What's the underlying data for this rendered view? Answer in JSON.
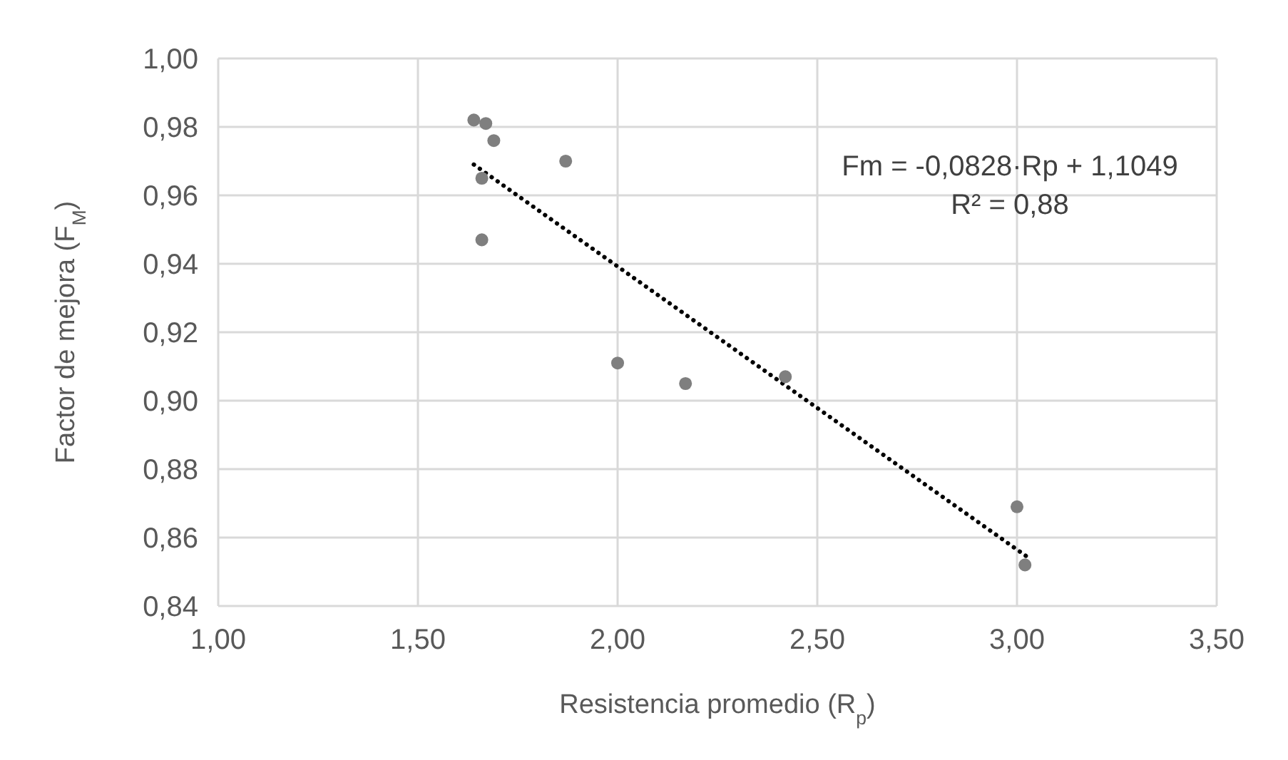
{
  "chart_data": {
    "type": "scatter",
    "xlabel": "Resistencia promedio (R$_{p}$)",
    "ylabel": "Factor de mejora (F$_{M}$)",
    "series": [
      {
        "color": "#7f7f7f",
        "x": [
          1.64,
          1.67,
          1.69,
          1.87,
          1.66,
          1.66,
          2.0,
          2.17,
          2.42,
          3.0,
          3.02
        ],
        "values": [
          0.982,
          0.981,
          0.976,
          0.97,
          0.965,
          0.947,
          0.911,
          0.905,
          0.907,
          0.869,
          0.852
        ],
        "marker": "circle"
      },
      {
        "type": "line",
        "color": "#000000",
        "x": [
          1.64,
          3.03
        ],
        "values": [
          0.969,
          0.854
        ],
        "line_style": "dotted",
        "marker": "none"
      }
    ],
    "annotations": [
      "Fm = -0,0828·Rp + 1,1049",
      "R² = 0,88"
    ],
    "xlim": [
      1.0,
      3.5
    ],
    "xticks": [
      {
        "value": 1.0,
        "label": "1,00"
      },
      {
        "value": 1.5,
        "label": "1,50"
      },
      {
        "value": 2.0,
        "label": "2,00"
      },
      {
        "value": 2.5,
        "label": "2,50"
      },
      {
        "value": 3.0,
        "label": "3,00"
      },
      {
        "value": 3.5,
        "label": "3,50"
      }
    ],
    "ylim": [
      0.84,
      1.0
    ],
    "yticks": [
      {
        "value": 0.84,
        "label": "0,84"
      },
      {
        "value": 0.86,
        "label": "0,86"
      },
      {
        "value": 0.88,
        "label": "0,88"
      },
      {
        "value": 0.9,
        "label": "0,90"
      },
      {
        "value": 0.92,
        "label": "0,92"
      },
      {
        "value": 0.94,
        "label": "0,94"
      },
      {
        "value": 0.96,
        "label": "0,96"
      },
      {
        "value": 0.98,
        "label": "0,98"
      },
      {
        "value": 1.0,
        "label": "1,00"
      }
    ],
    "grid": true
  }
}
